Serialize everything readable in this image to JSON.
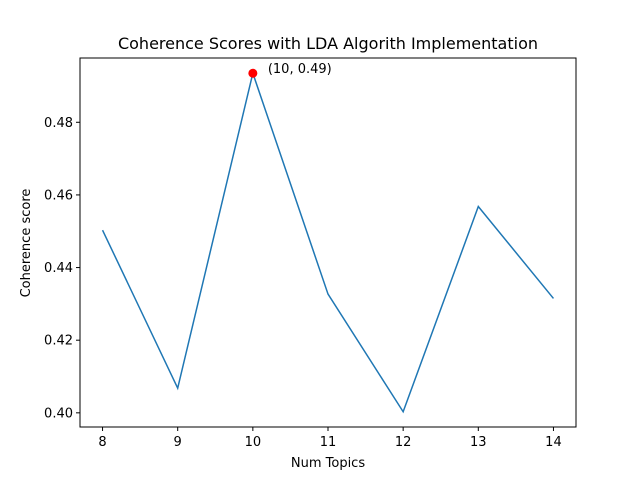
{
  "chart_data": {
    "type": "line",
    "title": "Coherence Scores with LDA Algorith Implementation",
    "xlabel": "Num Topics",
    "ylabel": "Coherence score",
    "x": [
      8,
      9,
      10,
      11,
      12,
      13,
      14
    ],
    "series": [
      {
        "values": [
          0.4503,
          0.4068,
          0.4935,
          0.4327,
          0.4003,
          0.4568,
          0.4315
        ],
        "color": "#1f77b4"
      }
    ],
    "xlim": [
      7.7,
      14.3
    ],
    "ylim": [
      0.3961,
      0.4977
    ],
    "xticks": [
      8,
      9,
      10,
      11,
      12,
      13,
      14
    ],
    "yticks": [
      0.4,
      0.42,
      0.44,
      0.46,
      0.48
    ],
    "ytick_labels": [
      "0.40",
      "0.42",
      "0.44",
      "0.46",
      "0.48"
    ],
    "highlight": {
      "x": 10,
      "y": 0.4935,
      "color": "#ff0000",
      "label": "(10, 0.49)"
    },
    "grid": false
  }
}
